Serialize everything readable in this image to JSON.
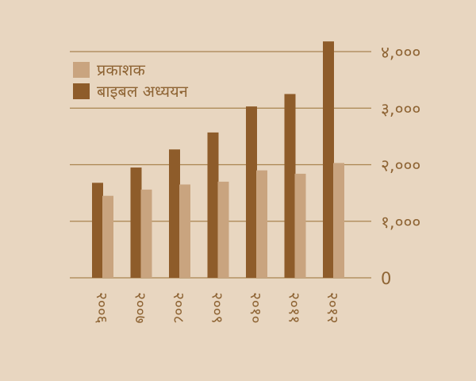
{
  "chart_data": {
    "type": "bar",
    "categories": [
      "२००६",
      "२००७",
      "२००८",
      "२००९",
      "२०१०",
      "२०११",
      "२०१२"
    ],
    "series": [
      {
        "name": "बाइबल अध्ययन",
        "values": [
          1680,
          1950,
          2270,
          2570,
          3030,
          3250,
          4180
        ],
        "color": "#8e5c2a"
      },
      {
        "name": "प्रकाशक",
        "values": [
          1450,
          1560,
          1650,
          1700,
          1900,
          1840,
          2030
        ],
        "color": "#c9a47f"
      }
    ],
    "yticks": [
      {
        "value": 0,
        "label": "0"
      },
      {
        "value": 1000,
        "label": "१,०००"
      },
      {
        "value": 2000,
        "label": "२,०००"
      },
      {
        "value": 3000,
        "label": "३,०००"
      },
      {
        "value": 4000,
        "label": "४,०००"
      }
    ],
    "ylim": [
      0,
      4000
    ],
    "gridline_color": "#a9834f",
    "y_axis_side": "right",
    "legend_position": "top-left",
    "grid": true
  }
}
